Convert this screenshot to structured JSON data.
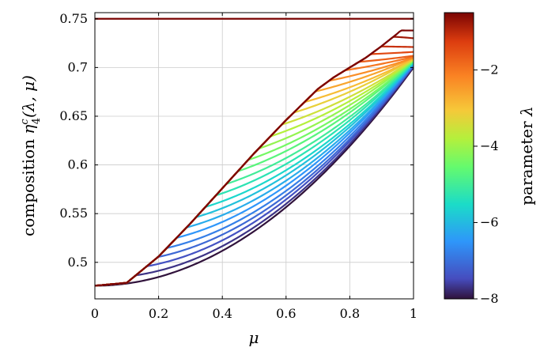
{
  "chart_data": {
    "type": "line",
    "xlabel": "μ",
    "ylabel": {
      "prefix": "composition ",
      "symbol": "η",
      "sub": "4",
      "sup": "c",
      "args": "(λ, μ)"
    },
    "colorbar_label": {
      "prefix": "parameter ",
      "symbol": "λ"
    },
    "xlim": [
      0,
      1
    ],
    "ylim": [
      0.4625,
      0.7563
    ],
    "x_ticks": [
      0,
      0.2,
      0.4,
      0.6,
      0.8,
      1
    ],
    "x_tick_labels": [
      "0",
      "0.2",
      "0.4",
      "0.6",
      "0.8",
      "1"
    ],
    "y_ticks": [
      0.5,
      0.55,
      0.6,
      0.65,
      0.7,
      0.75
    ],
    "y_tick_labels": [
      "0.5",
      "0.55",
      "0.6",
      "0.65",
      "0.7",
      "0.75"
    ],
    "colorbar": {
      "range": [
        -8,
        -0.5
      ],
      "ticks": [
        -8,
        -6,
        -4,
        -2
      ],
      "tick_labels": [
        "−8",
        "−6",
        "−4",
        "−2"
      ]
    },
    "grid": true,
    "series": [
      {
        "lambda": -8.0,
        "y0": 0.476,
        "ymin": 0.476,
        "xmin": 0.0,
        "y1": 0.7
      },
      {
        "lambda": -7.7,
        "y0": 0.485,
        "ymin": 0.484,
        "xmin": 0.02,
        "y1": 0.701
      },
      {
        "lambda": -7.4,
        "y0": 0.495,
        "ymin": 0.492,
        "xmin": 0.03,
        "y1": 0.702
      },
      {
        "lambda": -7.1,
        "y0": 0.505,
        "ymin": 0.5,
        "xmin": 0.04,
        "y1": 0.702
      },
      {
        "lambda": -6.8,
        "y0": 0.515,
        "ymin": 0.508,
        "xmin": 0.05,
        "y1": 0.703
      },
      {
        "lambda": -6.5,
        "y0": 0.526,
        "ymin": 0.517,
        "xmin": 0.06,
        "y1": 0.704
      },
      {
        "lambda": -6.2,
        "y0": 0.537,
        "ymin": 0.526,
        "xmin": 0.07,
        "y1": 0.704
      },
      {
        "lambda": -5.9,
        "y0": 0.549,
        "ymin": 0.535,
        "xmin": 0.08,
        "y1": 0.705
      },
      {
        "lambda": -5.6,
        "y0": 0.561,
        "ymin": 0.544,
        "xmin": 0.09,
        "y1": 0.705
      },
      {
        "lambda": -5.3,
        "y0": 0.572,
        "ymin": 0.554,
        "xmin": 0.1,
        "y1": 0.706
      },
      {
        "lambda": -5.0,
        "y0": 0.584,
        "ymin": 0.564,
        "xmin": 0.11,
        "y1": 0.706
      },
      {
        "lambda": -4.7,
        "y0": 0.596,
        "ymin": 0.575,
        "xmin": 0.12,
        "y1": 0.707
      },
      {
        "lambda": -4.4,
        "y0": 0.608,
        "ymin": 0.586,
        "xmin": 0.14,
        "y1": 0.707
      },
      {
        "lambda": -4.1,
        "y0": 0.62,
        "ymin": 0.597,
        "xmin": 0.16,
        "y1": 0.708
      },
      {
        "lambda": -3.8,
        "y0": 0.633,
        "ymin": 0.609,
        "xmin": 0.18,
        "y1": 0.708
      },
      {
        "lambda": -3.5,
        "y0": 0.645,
        "ymin": 0.621,
        "xmin": 0.2,
        "y1": 0.708
      },
      {
        "lambda": -3.2,
        "y0": 0.656,
        "ymin": 0.634,
        "xmin": 0.23,
        "y1": 0.709
      },
      {
        "lambda": -2.9,
        "y0": 0.668,
        "ymin": 0.647,
        "xmin": 0.27,
        "y1": 0.709
      },
      {
        "lambda": -2.6,
        "y0": 0.68,
        "ymin": 0.66,
        "xmin": 0.31,
        "y1": 0.71
      },
      {
        "lambda": -2.3,
        "y0": 0.692,
        "ymin": 0.674,
        "xmin": 0.36,
        "y1": 0.71
      },
      {
        "lambda": -2.0,
        "y0": 0.703,
        "ymin": 0.688,
        "xmin": 0.42,
        "y1": 0.711
      },
      {
        "lambda": -1.7,
        "y0": 0.714,
        "ymin": 0.701,
        "xmin": 0.5,
        "y1": 0.712
      },
      {
        "lambda": -1.4,
        "y0": 0.724,
        "ymin": 0.712,
        "xmin": 0.6,
        "y1": 0.716
      },
      {
        "lambda": -1.1,
        "y0": 0.734,
        "ymin": 0.722,
        "xmin": 0.72,
        "y1": 0.721
      },
      {
        "lambda": -0.8,
        "y0": 0.743,
        "ymin": 0.732,
        "xmin": 0.88,
        "y1": 0.73
      },
      {
        "lambda": -0.5,
        "y0": 0.75,
        "ymin": 0.738,
        "xmin": 0.999,
        "y1": 0.738
      }
    ],
    "plateau": {
      "y": 0.75,
      "width": 0.65
    },
    "envelope": [
      [
        0.0,
        0.476
      ],
      [
        0.1,
        0.479
      ],
      [
        0.2,
        0.506
      ],
      [
        0.3,
        0.54
      ],
      [
        0.4,
        0.576
      ],
      [
        0.5,
        0.612
      ],
      [
        0.6,
        0.646
      ],
      [
        0.7,
        0.678
      ],
      [
        0.75,
        0.69
      ],
      [
        0.8,
        0.7
      ],
      [
        0.85,
        0.71
      ],
      [
        0.9,
        0.722
      ],
      [
        0.95,
        0.735
      ],
      [
        1.0,
        0.75
      ]
    ]
  }
}
